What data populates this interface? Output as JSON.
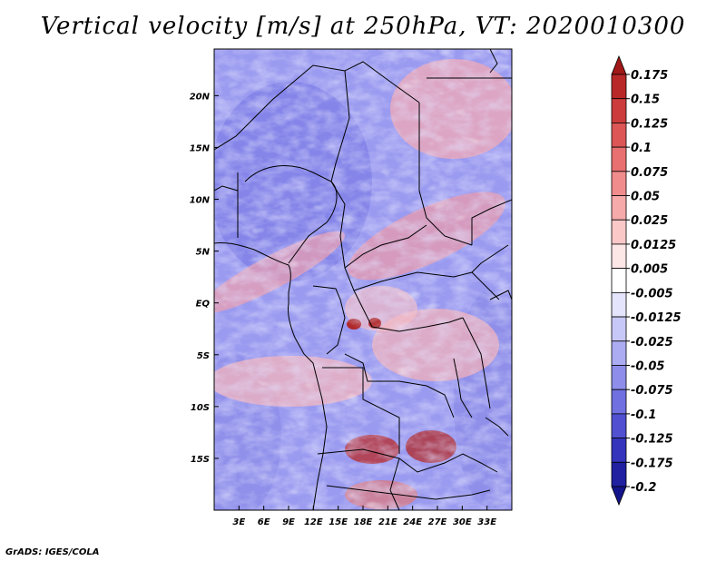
{
  "title": "Vertical velocity [m/s] at 250hPa, VT: 2020010300",
  "footer": "GrADS: IGES/COLA",
  "map": {
    "lon_range": [
      0,
      36
    ],
    "lat_range": [
      -20,
      24.5
    ],
    "x_ticks": [
      "3E",
      "6E",
      "9E",
      "12E",
      "15E",
      "18E",
      "21E",
      "24E",
      "27E",
      "30E",
      "33E"
    ],
    "x_tick_values": [
      3,
      6,
      9,
      12,
      15,
      18,
      21,
      24,
      27,
      30,
      33
    ],
    "y_ticks": [
      "20N",
      "15N",
      "10N",
      "5N",
      "EQ",
      "5S",
      "10S",
      "15S"
    ],
    "y_tick_values": [
      20,
      15,
      10,
      5,
      0,
      -5,
      -10,
      -15
    ]
  },
  "colorbar": {
    "labels": [
      "0.175",
      "0.15",
      "0.125",
      "0.1",
      "0.075",
      "0.05",
      "0.025",
      "0.0125",
      "0.005",
      "-0.005",
      "-0.0125",
      "-0.025",
      "-0.05",
      "-0.075",
      "-0.1",
      "-0.125",
      "-0.175",
      "-0.2"
    ],
    "colors": [
      "#a01818",
      "#b82828",
      "#cc3c3c",
      "#dc5656",
      "#e87070",
      "#f08c8c",
      "#f6aaaa",
      "#fbc8c8",
      "#fde6e6",
      "#ffffff",
      "#e4e4fc",
      "#c8c8f8",
      "#acacf2",
      "#8e8eea",
      "#7070e0",
      "#5050d0",
      "#3434bc",
      "#2020a0",
      "#14148a"
    ]
  }
}
